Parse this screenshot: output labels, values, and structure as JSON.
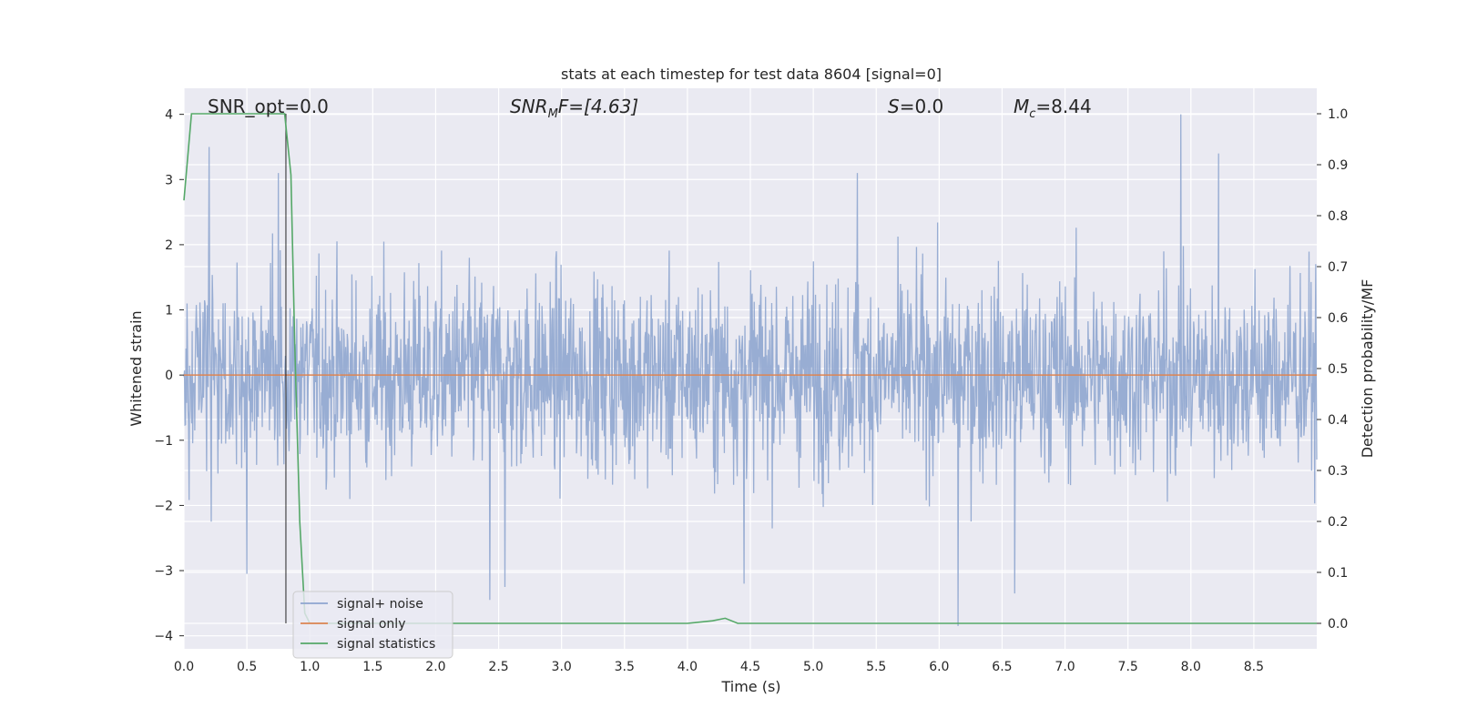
{
  "chart_data": {
    "type": "line",
    "title": "stats at each timestep for test data 8604 [signal=0]",
    "xlabel": "Time (s)",
    "ylabel": "Whitened strain",
    "y2label": "Detection probability/MF",
    "xlim": [
      0.0,
      9.0
    ],
    "ylim": [
      -4.2,
      4.4
    ],
    "y2lim": [
      -0.05,
      1.05
    ],
    "xticks": [
      "0.0",
      "0.5",
      "1.0",
      "1.5",
      "2.0",
      "2.5",
      "3.0",
      "3.5",
      "4.0",
      "4.5",
      "5.0",
      "5.5",
      "6.0",
      "6.5",
      "7.0",
      "7.5",
      "8.0",
      "8.5"
    ],
    "yticks": [
      "4",
      "3",
      "2",
      "1",
      "0",
      "−1",
      "−2",
      "−3",
      "−4"
    ],
    "y2ticks": [
      "1.0",
      "0.9",
      "0.8",
      "0.7",
      "0.6",
      "0.5",
      "0.4",
      "0.3",
      "0.2",
      "0.1",
      "0.0"
    ],
    "grid": true,
    "legend_position": "lower-left",
    "annotations": {
      "snr_opt": "SNR_opt=0.0",
      "snr_mf_base": "SNR",
      "snr_mf_sub": "M",
      "snr_mf_rest": "F=[4.63]",
      "s_var": "S",
      "s_rest": "=0.0",
      "mc_var": "M",
      "mc_sub": "c",
      "mc_rest": "=8.44"
    },
    "series": [
      {
        "name": "signal+ noise",
        "color": "#8fa6cf",
        "axis": "left",
        "approx_range": [
          -4.0,
          4.0
        ],
        "notable_peaks": [
          {
            "x": 0.2,
            "y": 3.5
          },
          {
            "x": 0.5,
            "y": -3.05
          },
          {
            "x": 0.75,
            "y": 3.1
          },
          {
            "x": 2.43,
            "y": -3.45
          },
          {
            "x": 2.55,
            "y": -3.25
          },
          {
            "x": 4.45,
            "y": -3.2
          },
          {
            "x": 5.35,
            "y": 3.1
          },
          {
            "x": 6.15,
            "y": -3.85
          },
          {
            "x": 6.6,
            "y": -3.35
          },
          {
            "x": 7.92,
            "y": 4.0
          },
          {
            "x": 8.22,
            "y": 3.4
          }
        ]
      },
      {
        "name": "signal only",
        "color": "#dd8452",
        "axis": "left",
        "x": [
          0.0,
          9.0
        ],
        "y": [
          0.0,
          0.0
        ]
      },
      {
        "name": "signal statistics",
        "color": "#55a868",
        "axis": "right",
        "x": [
          0.0,
          0.06,
          0.12,
          0.2,
          0.4,
          0.6,
          0.8,
          0.85,
          0.88,
          0.92,
          0.96,
          1.0,
          2.0,
          3.0,
          4.0,
          4.2,
          4.3,
          4.4,
          5.0,
          6.0,
          7.0,
          8.0,
          9.0
        ],
        "y": [
          0.83,
          1.0,
          1.0,
          1.0,
          1.0,
          1.0,
          1.0,
          0.88,
          0.55,
          0.2,
          0.02,
          0.0,
          0.0,
          0.0,
          0.0,
          0.005,
          0.01,
          0.0,
          0.0,
          0.0,
          0.0,
          0.0,
          0.0
        ]
      }
    ],
    "marker_line": {
      "x": 0.81,
      "color": "#000000"
    }
  }
}
